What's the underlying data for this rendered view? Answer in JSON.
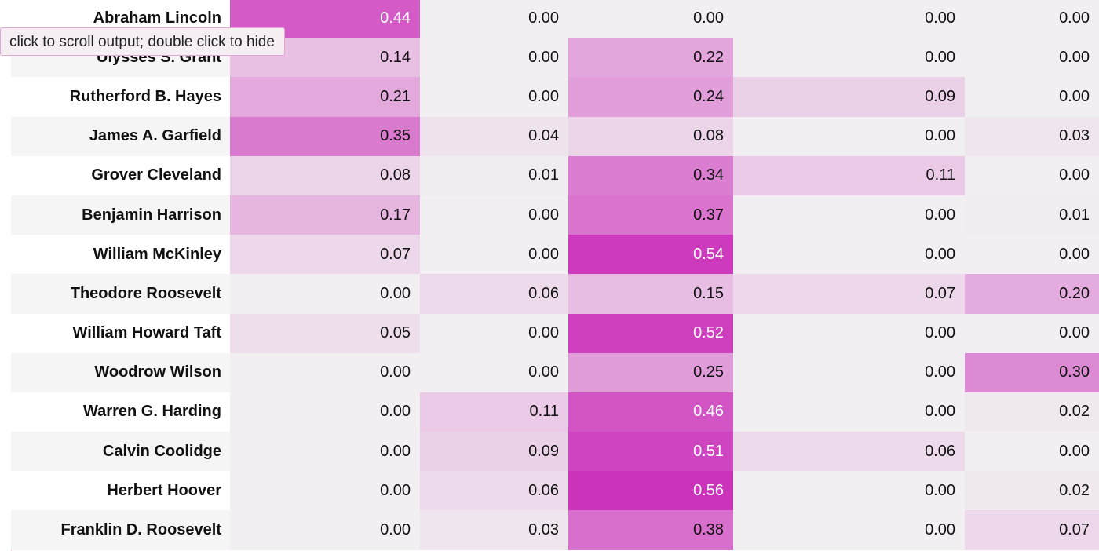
{
  "tooltip": {
    "text": "click to scroll output; double click to hide"
  },
  "heatmap": {
    "color_high": "#cc33bb",
    "color_low": "#f1eff1",
    "value_max": 0.56
  },
  "table": {
    "rows": [
      {
        "name": "Abraham Lincoln",
        "values": [
          "0.44",
          "0.00",
          "0.00",
          "0.00",
          "0.00"
        ]
      },
      {
        "name": "Ulysses S. Grant",
        "values": [
          "0.14",
          "0.00",
          "0.22",
          "0.00",
          "0.00"
        ]
      },
      {
        "name": "Rutherford B. Hayes",
        "values": [
          "0.21",
          "0.00",
          "0.24",
          "0.09",
          "0.00"
        ]
      },
      {
        "name": "James A. Garfield",
        "values": [
          "0.35",
          "0.04",
          "0.08",
          "0.00",
          "0.03"
        ]
      },
      {
        "name": "Grover Cleveland",
        "values": [
          "0.08",
          "0.01",
          "0.34",
          "0.11",
          "0.00"
        ]
      },
      {
        "name": "Benjamin Harrison",
        "values": [
          "0.17",
          "0.00",
          "0.37",
          "0.00",
          "0.01"
        ]
      },
      {
        "name": "William McKinley",
        "values": [
          "0.07",
          "0.00",
          "0.54",
          "0.00",
          "0.00"
        ]
      },
      {
        "name": "Theodore Roosevelt",
        "values": [
          "0.00",
          "0.06",
          "0.15",
          "0.07",
          "0.20"
        ]
      },
      {
        "name": "William Howard Taft",
        "values": [
          "0.05",
          "0.00",
          "0.52",
          "0.00",
          "0.00"
        ]
      },
      {
        "name": "Woodrow Wilson",
        "values": [
          "0.00",
          "0.00",
          "0.25",
          "0.00",
          "0.30"
        ]
      },
      {
        "name": "Warren G. Harding",
        "values": [
          "0.00",
          "0.11",
          "0.46",
          "0.00",
          "0.02"
        ]
      },
      {
        "name": "Calvin Coolidge",
        "values": [
          "0.00",
          "0.09",
          "0.51",
          "0.06",
          "0.00"
        ]
      },
      {
        "name": "Herbert Hoover",
        "values": [
          "0.00",
          "0.06",
          "0.56",
          "0.00",
          "0.02"
        ]
      },
      {
        "name": "Franklin D. Roosevelt",
        "values": [
          "0.00",
          "0.03",
          "0.38",
          "0.00",
          "0.07"
        ]
      }
    ]
  }
}
